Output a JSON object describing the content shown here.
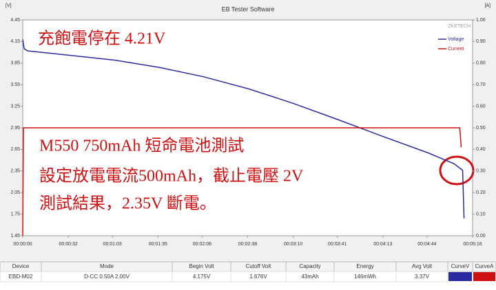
{
  "chart_data": {
    "type": "line",
    "title": "EB Tester Software",
    "ylabel": "[V]",
    "y2label": "[A]",
    "brand": "ZKETECH",
    "x": [
      0,
      1,
      3.4,
      32,
      65,
      96,
      127,
      159,
      190,
      222,
      253,
      285,
      303,
      309,
      310
    ],
    "series": [
      {
        "name": "Voltage",
        "color": "#2a2aa0",
        "x": [
          0,
          1,
          3.4,
          32,
          65,
          96,
          127,
          159,
          190,
          222,
          253,
          285,
          303,
          309,
          310
        ],
        "values": [
          4.18,
          4.05,
          4.02,
          3.96,
          3.89,
          3.79,
          3.66,
          3.49,
          3.29,
          3.06,
          2.83,
          2.6,
          2.45,
          2.36,
          1.69
        ]
      },
      {
        "name": "Current",
        "color": "#cc1010",
        "axis": "y2",
        "x": [
          0,
          0.5,
          307,
          308
        ],
        "values": [
          0,
          0.5,
          0.5,
          0.41
        ]
      }
    ],
    "xlim": [
      0,
      316
    ],
    "xticks": [
      {
        "value": 0,
        "label": "00:00:00"
      },
      {
        "value": 32,
        "label": "00:00:32"
      },
      {
        "value": 63,
        "label": "00:01:03"
      },
      {
        "value": 95,
        "label": "00:01:35"
      },
      {
        "value": 126,
        "label": "00:02:06"
      },
      {
        "value": 158,
        "label": "00:02:38"
      },
      {
        "value": 190,
        "label": "00:03:10"
      },
      {
        "value": 221,
        "label": "00:03:41"
      },
      {
        "value": 253,
        "label": "00:04:13"
      },
      {
        "value": 284,
        "label": "00:04:44"
      },
      {
        "value": 316,
        "label": "00:05:16"
      }
    ],
    "ylim": [
      1.45,
      4.45
    ],
    "yticks": [
      4.45,
      4.15,
      3.85,
      3.55,
      3.25,
      2.95,
      2.65,
      2.35,
      2.05,
      1.75,
      1.45
    ],
    "y2lim": [
      0,
      1
    ],
    "y2ticks": [
      {
        "value": 1,
        "label": "1.00"
      },
      {
        "value": 0.9,
        "label": "0.90"
      },
      {
        "value": 0.8,
        "label": "0.80"
      },
      {
        "value": 0.7,
        "label": "0.70"
      },
      {
        "value": 0.6,
        "label": "0.60"
      },
      {
        "value": 0.5,
        "label": "0.50"
      },
      {
        "value": 0.4,
        "label": "0.40"
      },
      {
        "value": 0.3,
        "label": "0.30"
      },
      {
        "value": 0.2,
        "label": "0.20"
      },
      {
        "value": 0.1,
        "label": "0.10"
      },
      {
        "value": 0,
        "label": "0.00"
      }
    ],
    "grid": false,
    "legend": "upper right",
    "annotations": [
      "充飽電停在 4.21V",
      "M550 750mAh 短命電池測試",
      "設定放電電流500mAh，截止電壓 2V",
      "測試結果，2.35V 斷電。"
    ]
  },
  "table": {
    "columns": [
      "Device",
      "Mode",
      "Begin Volt",
      "Cutoff Volt",
      "Capacity",
      "Energy",
      "Avg Volt",
      "CurveV",
      "CurveA"
    ],
    "rows": [
      [
        "EBD-M02",
        "D-CC 0.50A 2.00V",
        "4.175V",
        "1.676V",
        "43mAh",
        "146mWh",
        "3.37V"
      ]
    ]
  }
}
